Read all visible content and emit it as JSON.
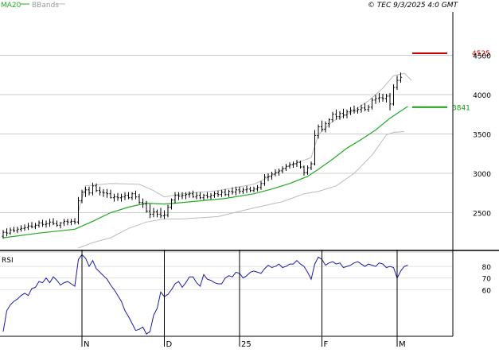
{
  "header": {
    "ma_label": "MA20",
    "bbands_label": "BBands",
    "copyright": "© TEC 9/3/2025 4:0 GMT"
  },
  "rsi_panel": {
    "label": "RSI"
  },
  "colors": {
    "ma": "#22aa22",
    "bands": "#bbbbbb",
    "bars": "#000000",
    "resistance": "#cc0000",
    "support": "#119911",
    "rsi": "#1a1aa8",
    "grid": "#cccccc"
  },
  "chart_data": [
    {
      "type": "ohlc",
      "x_ticks": [
        "N",
        "D",
        "25",
        "F",
        "M"
      ],
      "y_ticks": [
        2500,
        3000,
        3500,
        4000,
        4500
      ],
      "ylim": [
        2030,
        5050
      ],
      "gridlines": [
        2000,
        2500,
        3000,
        3500,
        4000,
        4500
      ],
      "grid": true,
      "ohlc": [
        [
          2200,
          2280,
          2170,
          2250
        ],
        [
          2250,
          2300,
          2200,
          2240
        ],
        [
          2240,
          2310,
          2220,
          2280
        ],
        [
          2280,
          2320,
          2250,
          2270
        ],
        [
          2270,
          2320,
          2240,
          2290
        ],
        [
          2290,
          2340,
          2260,
          2300
        ],
        [
          2300,
          2350,
          2270,
          2310
        ],
        [
          2310,
          2370,
          2280,
          2330
        ],
        [
          2330,
          2380,
          2300,
          2320
        ],
        [
          2320,
          2370,
          2290,
          2340
        ],
        [
          2340,
          2400,
          2310,
          2370
        ],
        [
          2370,
          2410,
          2320,
          2350
        ],
        [
          2350,
          2400,
          2310,
          2360
        ],
        [
          2360,
          2420,
          2320,
          2380
        ],
        [
          2380,
          2430,
          2340,
          2360
        ],
        [
          2360,
          2400,
          2320,
          2340
        ],
        [
          2340,
          2380,
          2300,
          2370
        ],
        [
          2370,
          2420,
          2330,
          2390
        ],
        [
          2390,
          2420,
          2340,
          2380
        ],
        [
          2380,
          2420,
          2340,
          2390
        ],
        [
          2390,
          2430,
          2350,
          2380
        ],
        [
          2380,
          2700,
          2350,
          2650
        ],
        [
          2650,
          2790,
          2620,
          2760
        ],
        [
          2760,
          2830,
          2700,
          2790
        ],
        [
          2790,
          2830,
          2720,
          2750
        ],
        [
          2750,
          2880,
          2720,
          2840
        ],
        [
          2840,
          2870,
          2760,
          2780
        ],
        [
          2780,
          2830,
          2720,
          2760
        ],
        [
          2760,
          2800,
          2700,
          2750
        ],
        [
          2750,
          2800,
          2690,
          2740
        ],
        [
          2740,
          2790,
          2680,
          2690
        ],
        [
          2690,
          2740,
          2640,
          2700
        ],
        [
          2700,
          2750,
          2650,
          2690
        ],
        [
          2690,
          2740,
          2640,
          2700
        ],
        [
          2700,
          2760,
          2660,
          2720
        ],
        [
          2720,
          2760,
          2670,
          2690
        ],
        [
          2690,
          2760,
          2660,
          2740
        ],
        [
          2740,
          2780,
          2670,
          2700
        ],
        [
          2700,
          2740,
          2610,
          2630
        ],
        [
          2630,
          2680,
          2560,
          2610
        ],
        [
          2610,
          2650,
          2500,
          2520
        ],
        [
          2520,
          2610,
          2430,
          2480
        ],
        [
          2480,
          2560,
          2440,
          2510
        ],
        [
          2510,
          2540,
          2440,
          2480
        ],
        [
          2480,
          2560,
          2430,
          2460
        ],
        [
          2460,
          2530,
          2420,
          2470
        ],
        [
          2470,
          2600,
          2440,
          2570
        ],
        [
          2570,
          2680,
          2540,
          2660
        ],
        [
          2660,
          2760,
          2620,
          2720
        ],
        [
          2720,
          2760,
          2660,
          2710
        ],
        [
          2710,
          2760,
          2670,
          2720
        ],
        [
          2720,
          2760,
          2670,
          2730
        ],
        [
          2730,
          2770,
          2690,
          2740
        ],
        [
          2740,
          2780,
          2690,
          2700
        ],
        [
          2700,
          2760,
          2670,
          2720
        ],
        [
          2720,
          2760,
          2670,
          2690
        ],
        [
          2690,
          2740,
          2660,
          2720
        ],
        [
          2720,
          2760,
          2680,
          2700
        ],
        [
          2700,
          2750,
          2670,
          2720
        ],
        [
          2720,
          2770,
          2690,
          2740
        ],
        [
          2740,
          2780,
          2700,
          2730
        ],
        [
          2730,
          2790,
          2700,
          2760
        ],
        [
          2760,
          2800,
          2710,
          2730
        ],
        [
          2730,
          2790,
          2700,
          2770
        ],
        [
          2770,
          2820,
          2730,
          2760
        ],
        [
          2760,
          2830,
          2720,
          2790
        ],
        [
          2790,
          2830,
          2740,
          2770
        ],
        [
          2770,
          2820,
          2740,
          2790
        ],
        [
          2790,
          2840,
          2750,
          2800
        ],
        [
          2800,
          2830,
          2760,
          2780
        ],
        [
          2780,
          2830,
          2760,
          2800
        ],
        [
          2800,
          2850,
          2770,
          2820
        ],
        [
          2820,
          2900,
          2790,
          2870
        ],
        [
          2870,
          2990,
          2840,
          2950
        ],
        [
          2950,
          3000,
          2900,
          2960
        ],
        [
          2960,
          3020,
          2920,
          2990
        ],
        [
          2990,
          3050,
          2960,
          3010
        ],
        [
          3010,
          3060,
          2970,
          3030
        ],
        [
          3030,
          3090,
          3000,
          3060
        ],
        [
          3060,
          3120,
          3030,
          3090
        ],
        [
          3090,
          3140,
          3060,
          3110
        ],
        [
          3110,
          3150,
          3070,
          3120
        ],
        [
          3120,
          3170,
          3080,
          3140
        ],
        [
          3140,
          3160,
          3060,
          3080
        ],
        [
          3080,
          3100,
          2970,
          3010
        ],
        [
          3010,
          3100,
          2980,
          3070
        ],
        [
          3070,
          3150,
          3040,
          3120
        ],
        [
          3120,
          3550,
          3100,
          3480
        ],
        [
          3480,
          3620,
          3440,
          3590
        ],
        [
          3590,
          3670,
          3530,
          3560
        ],
        [
          3560,
          3660,
          3520,
          3630
        ],
        [
          3630,
          3700,
          3580,
          3680
        ],
        [
          3680,
          3780,
          3650,
          3750
        ],
        [
          3750,
          3810,
          3680,
          3720
        ],
        [
          3720,
          3790,
          3680,
          3760
        ],
        [
          3760,
          3820,
          3700,
          3740
        ],
        [
          3740,
          3810,
          3700,
          3780
        ],
        [
          3780,
          3840,
          3740,
          3800
        ],
        [
          3800,
          3860,
          3760,
          3790
        ],
        [
          3790,
          3840,
          3760,
          3810
        ],
        [
          3810,
          3870,
          3770,
          3830
        ],
        [
          3830,
          3890,
          3790,
          3810
        ],
        [
          3810,
          3870,
          3780,
          3840
        ],
        [
          3840,
          3960,
          3810,
          3930
        ],
        [
          3930,
          4000,
          3880,
          3950
        ],
        [
          3950,
          4020,
          3900,
          3960
        ],
        [
          3960,
          4010,
          3910,
          3950
        ],
        [
          3950,
          4010,
          3900,
          3980
        ],
        [
          3980,
          4020,
          3800,
          3880
        ],
        [
          3880,
          4130,
          3860,
          4090
        ],
        [
          4090,
          4240,
          4060,
          4180
        ],
        [
          4180,
          4280,
          4150,
          4220
        ]
      ],
      "ma20": [
        [
          0,
          2180
        ],
        [
          10,
          2240
        ],
        [
          20,
          2290
        ],
        [
          21,
          2310
        ],
        [
          25,
          2390
        ],
        [
          30,
          2500
        ],
        [
          35,
          2570
        ],
        [
          40,
          2620
        ],
        [
          45,
          2610
        ],
        [
          48,
          2620
        ],
        [
          55,
          2650
        ],
        [
          62,
          2680
        ],
        [
          70,
          2740
        ],
        [
          75,
          2800
        ],
        [
          80,
          2870
        ],
        [
          85,
          2960
        ],
        [
          88,
          3050
        ],
        [
          92,
          3180
        ],
        [
          96,
          3320
        ],
        [
          100,
          3430
        ],
        [
          104,
          3550
        ],
        [
          108,
          3700
        ],
        [
          111,
          3790
        ],
        [
          113,
          3850
        ]
      ],
      "bb_upper": [
        [
          21,
          2520
        ],
        [
          23,
          2840
        ],
        [
          30,
          2870
        ],
        [
          38,
          2860
        ],
        [
          42,
          2780
        ],
        [
          45,
          2700
        ],
        [
          50,
          2740
        ],
        [
          60,
          2780
        ],
        [
          70,
          2860
        ],
        [
          75,
          2970
        ],
        [
          80,
          3100
        ],
        [
          86,
          3200
        ],
        [
          88,
          3490
        ],
        [
          92,
          3660
        ],
        [
          97,
          3770
        ],
        [
          102,
          3920
        ],
        [
          106,
          4080
        ],
        [
          109,
          4240
        ],
        [
          112,
          4270
        ],
        [
          114,
          4180
        ]
      ],
      "bb_lower": [
        [
          21,
          2050
        ],
        [
          25,
          2120
        ],
        [
          30,
          2180
        ],
        [
          35,
          2300
        ],
        [
          40,
          2380
        ],
        [
          45,
          2420
        ],
        [
          50,
          2420
        ],
        [
          60,
          2450
        ],
        [
          70,
          2560
        ],
        [
          78,
          2640
        ],
        [
          84,
          2740
        ],
        [
          88,
          2770
        ],
        [
          93,
          2840
        ],
        [
          98,
          3000
        ],
        [
          103,
          3230
        ],
        [
          107,
          3490
        ],
        [
          109,
          3520
        ],
        [
          112,
          3530
        ]
      ],
      "resistance": {
        "value": 4525,
        "label": "4525"
      },
      "support": {
        "value": 3841,
        "label": "3841"
      }
    },
    {
      "type": "line",
      "name": "RSI",
      "y_ticks": [
        60,
        70,
        80
      ],
      "ylim": [
        20,
        93
      ],
      "gridlines": [
        60,
        70,
        80
      ],
      "values": [
        24,
        42,
        47,
        50,
        52,
        55,
        57,
        55,
        61,
        62,
        67,
        66,
        70,
        66,
        71,
        68,
        64,
        66,
        67,
        65,
        63,
        86,
        90,
        87,
        80,
        85,
        78,
        75,
        72,
        69,
        64,
        60,
        55,
        50,
        42,
        37,
        31,
        25,
        26,
        28,
        22,
        24,
        38,
        44,
        58,
        54,
        56,
        60,
        65,
        67,
        62,
        66,
        71,
        71,
        66,
        63,
        73,
        69,
        68,
        66,
        65,
        65,
        70,
        72,
        71,
        75,
        74,
        70,
        72,
        75,
        76,
        75,
        74,
        78,
        81,
        79,
        80,
        82,
        79,
        80,
        82,
        82,
        85,
        82,
        80,
        75,
        69,
        82,
        88,
        86,
        81,
        83,
        84,
        82,
        83,
        79,
        80,
        81,
        83,
        84,
        82,
        80,
        82,
        81,
        80,
        83,
        82,
        79,
        80,
        79,
        70,
        76,
        80,
        81
      ]
    }
  ]
}
